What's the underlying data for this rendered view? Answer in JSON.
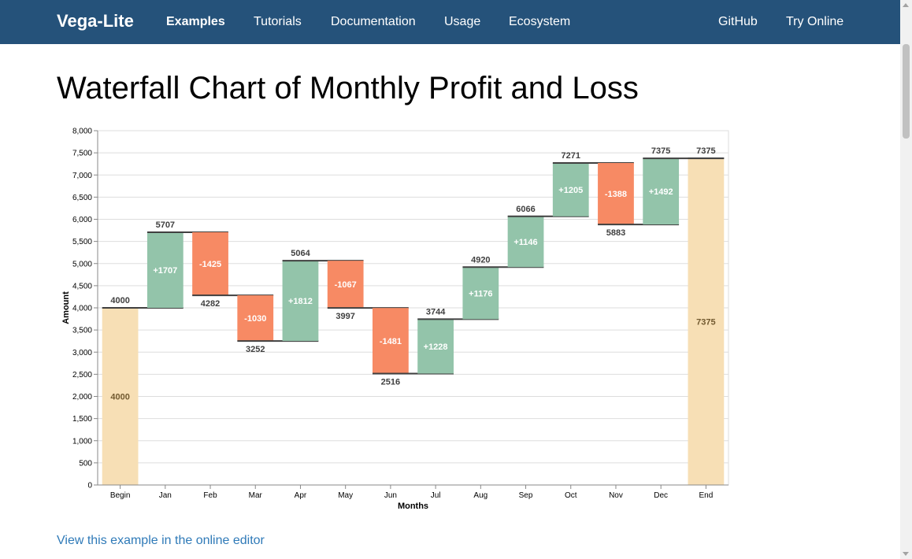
{
  "nav": {
    "brand": "Vega-Lite",
    "items": [
      {
        "label": "Examples",
        "active": true
      },
      {
        "label": "Tutorials"
      },
      {
        "label": "Documentation"
      },
      {
        "label": "Usage"
      },
      {
        "label": "Ecosystem"
      }
    ],
    "right_items": [
      {
        "label": "GitHub"
      },
      {
        "label": "Try Online"
      }
    ]
  },
  "page": {
    "title": "Waterfall Chart of Monthly Profit and Loss",
    "editor_link": "View this example in the online editor"
  },
  "colors": {
    "navbar": "#25527a",
    "increase": "#93c4aa",
    "decrease": "#f78a64",
    "total": "#f7dfb5",
    "link": "#2f7ab8"
  },
  "chart_data": {
    "type": "bar",
    "xlabel": "Months",
    "ylabel": "Amount",
    "ylim": [
      0,
      8000
    ],
    "yticks": [
      0,
      500,
      1000,
      1500,
      2000,
      2500,
      3000,
      3500,
      4000,
      4500,
      5000,
      5500,
      6000,
      6500,
      7000,
      7500,
      8000
    ],
    "grid": true,
    "categories": [
      "Begin",
      "Jan",
      "Feb",
      "Mar",
      "Apr",
      "May",
      "Jun",
      "Jul",
      "Aug",
      "Sep",
      "Oct",
      "Nov",
      "Dec",
      "End"
    ],
    "amounts": [
      4000,
      1707,
      -1425,
      -1030,
      1812,
      -1067,
      -1481,
      1228,
      1176,
      1146,
      1205,
      -1388,
      1492,
      0
    ],
    "bars": [
      {
        "label": "Begin",
        "kind": "total",
        "start": 0,
        "end": 4000,
        "top_label": "4000",
        "inner_label": "4000"
      },
      {
        "label": "Jan",
        "kind": "increase",
        "start": 4000,
        "end": 5707,
        "top_label": "5707",
        "inner_label": "+1707"
      },
      {
        "label": "Feb",
        "kind": "decrease",
        "start": 5707,
        "end": 4282,
        "bottom_label": "4282",
        "inner_label": "-1425"
      },
      {
        "label": "Mar",
        "kind": "decrease",
        "start": 4282,
        "end": 3252,
        "bottom_label": "3252",
        "inner_label": "-1030"
      },
      {
        "label": "Apr",
        "kind": "increase",
        "start": 3252,
        "end": 5064,
        "top_label": "5064",
        "inner_label": "+1812"
      },
      {
        "label": "May",
        "kind": "decrease",
        "start": 5064,
        "end": 3997,
        "bottom_label": "3997",
        "inner_label": "-1067"
      },
      {
        "label": "Jun",
        "kind": "decrease",
        "start": 3997,
        "end": 2516,
        "bottom_label": "2516",
        "inner_label": "-1481"
      },
      {
        "label": "Jul",
        "kind": "increase",
        "start": 2516,
        "end": 3744,
        "top_label": "3744",
        "inner_label": "+1228"
      },
      {
        "label": "Aug",
        "kind": "increase",
        "start": 3744,
        "end": 4920,
        "top_label": "4920",
        "inner_label": "+1176"
      },
      {
        "label": "Sep",
        "kind": "increase",
        "start": 4920,
        "end": 6066,
        "top_label": "6066",
        "inner_label": "+1146"
      },
      {
        "label": "Oct",
        "kind": "increase",
        "start": 6066,
        "end": 7271,
        "top_label": "7271",
        "inner_label": "+1205"
      },
      {
        "label": "Nov",
        "kind": "decrease",
        "start": 7271,
        "end": 5883,
        "bottom_label": "5883",
        "inner_label": "-1388"
      },
      {
        "label": "Dec",
        "kind": "increase",
        "start": 5883,
        "end": 7375,
        "top_label": "7375",
        "inner_label": "+1492"
      },
      {
        "label": "End",
        "kind": "total",
        "start": 0,
        "end": 7375,
        "top_label": "7375",
        "inner_label": "7375"
      }
    ]
  }
}
